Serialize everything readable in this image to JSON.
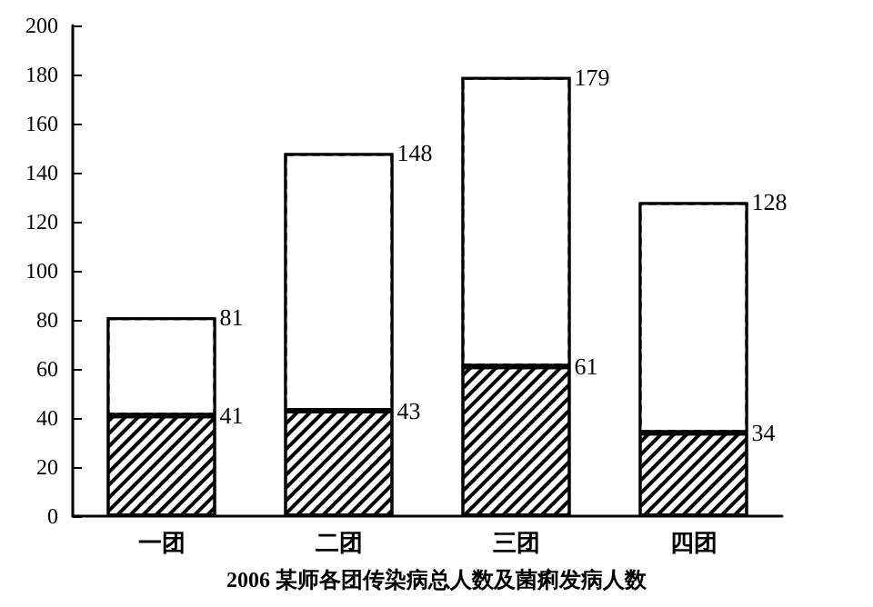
{
  "chart_data": {
    "type": "bar",
    "title": "2006 某师各团传染病总人数及菌痢发病人数",
    "categories": [
      "一团",
      "二团",
      "三团",
      "四团"
    ],
    "stacked": true,
    "series": [
      {
        "color": "#000000",
        "values": [
          41,
          43,
          61,
          34
        ],
        "value_labels": [
          "41",
          "43",
          "61",
          "34"
        ]
      },
      {
        "color": "#ffffff",
        "values": [
          40,
          105,
          118,
          94
        ]
      }
    ],
    "totals": [
      "81",
      "148",
      "179",
      "128"
    ],
    "ylim": [
      0,
      200
    ],
    "yticks": [
      0,
      20,
      40,
      60,
      80,
      100,
      120,
      140,
      160,
      180,
      200
    ],
    "grid": false
  }
}
